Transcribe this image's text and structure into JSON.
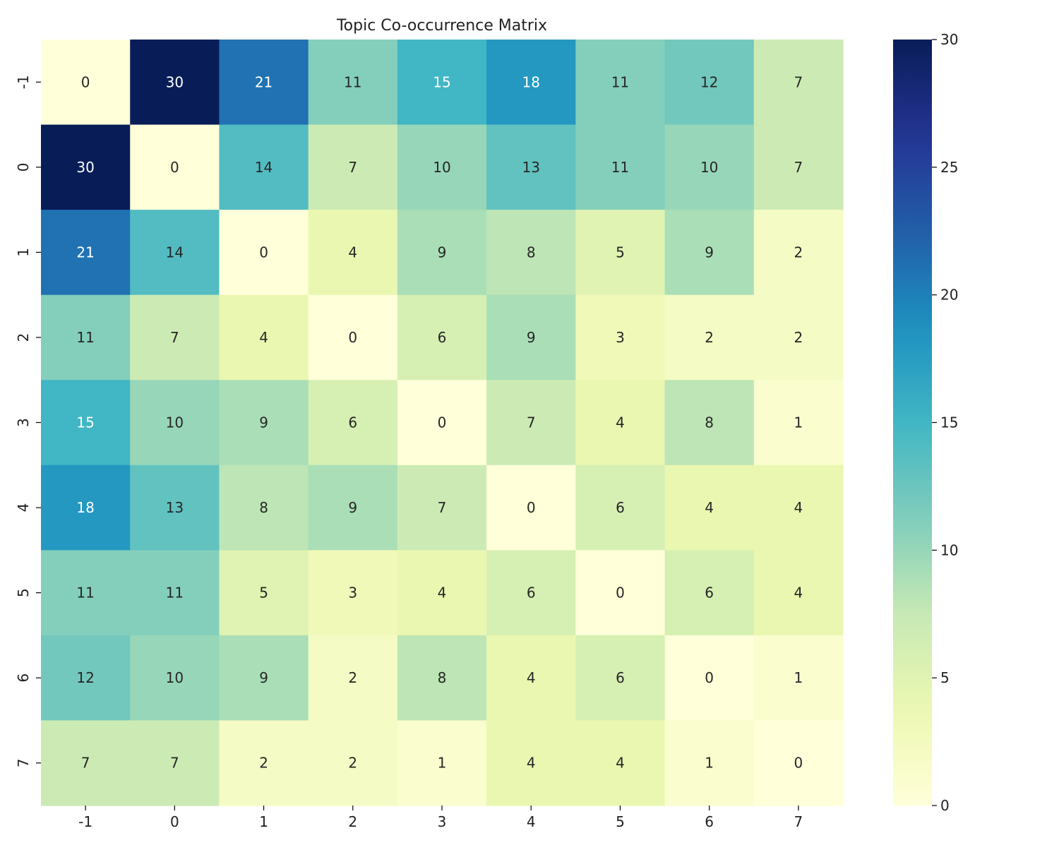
{
  "chart_data": {
    "type": "heatmap",
    "title": "Topic Co-occurrence Matrix",
    "xlabel": "",
    "ylabel": "",
    "x_labels": [
      "-1",
      "0",
      "1",
      "2",
      "3",
      "4",
      "5",
      "6",
      "7"
    ],
    "y_labels": [
      "-1",
      "0",
      "1",
      "2",
      "3",
      "4",
      "5",
      "6",
      "7"
    ],
    "values": [
      [
        0,
        30,
        21,
        11,
        15,
        18,
        11,
        12,
        7
      ],
      [
        30,
        0,
        14,
        7,
        10,
        13,
        11,
        10,
        7
      ],
      [
        21,
        14,
        0,
        4,
        9,
        8,
        5,
        9,
        2
      ],
      [
        11,
        7,
        4,
        0,
        6,
        9,
        3,
        2,
        2
      ],
      [
        15,
        10,
        9,
        6,
        0,
        7,
        4,
        8,
        1
      ],
      [
        18,
        13,
        8,
        9,
        7,
        0,
        6,
        4,
        4
      ],
      [
        11,
        11,
        5,
        3,
        4,
        6,
        0,
        6,
        4
      ],
      [
        12,
        10,
        9,
        2,
        8,
        4,
        6,
        0,
        1
      ],
      [
        7,
        7,
        2,
        2,
        1,
        4,
        4,
        1,
        0
      ]
    ],
    "vmin": 0,
    "vmax": 30,
    "colorbar_ticks": [
      0,
      5,
      10,
      15,
      20,
      25,
      30
    ],
    "colormap": "YlGnBu"
  }
}
